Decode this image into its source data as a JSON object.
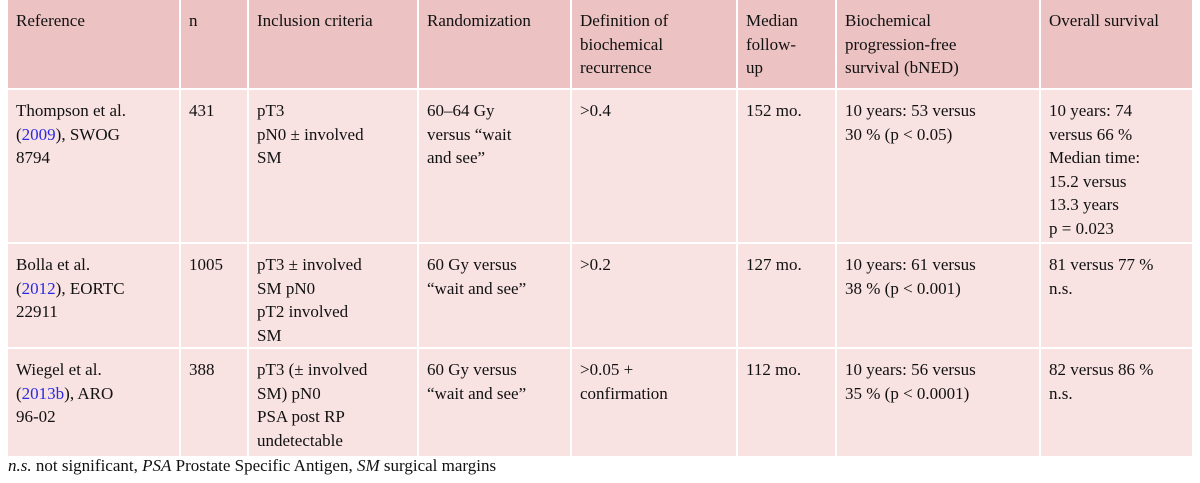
{
  "table": {
    "header": [
      [
        "Reference"
      ],
      [
        "n"
      ],
      [
        "Inclusion criteria"
      ],
      [
        "Randomization"
      ],
      [
        "Definition of",
        "biochemical",
        "recurrence"
      ],
      [
        "Median",
        "follow-",
        "up"
      ],
      [
        "Biochemical",
        "progression-free",
        "survival (bNED)"
      ],
      [
        "Overall survival"
      ]
    ],
    "rows": [
      [
        [
          "Thompson et al.",
          [
            "(",
            "2009",
            "), SWOG"
          ],
          "8794"
        ],
        [
          "431"
        ],
        [
          "pT3",
          "pN0 ± involved",
          "SM"
        ],
        [
          "60–64 Gy",
          "versus “wait",
          "and see”"
        ],
        [
          ">0.4"
        ],
        [
          "152 mo."
        ],
        [
          "10 years: 53 versus",
          "30 % (p < 0.05)"
        ],
        [
          "10 years: 74",
          "versus 66 %",
          "Median time:",
          "15.2 versus",
          "13.3 years",
          "p = 0.023"
        ]
      ],
      [
        [
          "Bolla et al.",
          [
            "(",
            "2012",
            "), EORTC"
          ],
          "22911"
        ],
        [
          "1005"
        ],
        [
          "pT3 ± involved",
          "SM pN0",
          "pT2 involved",
          "SM"
        ],
        [
          "60 Gy versus",
          "“wait and see”"
        ],
        [
          ">0.2"
        ],
        [
          "127 mo."
        ],
        [
          "10 years: 61 versus",
          "38 % (p < 0.001)"
        ],
        [
          "81 versus 77 %",
          "n.s."
        ]
      ],
      [
        [
          "Wiegel et al.",
          [
            "(",
            "2013b",
            "), ARO"
          ],
          "96-02"
        ],
        [
          "388"
        ],
        [
          "pT3 (± involved",
          "SM) pN0",
          "PSA post RP",
          "undetectable"
        ],
        [
          "60 Gy versus",
          "“wait and see”"
        ],
        [
          ">0.05 +",
          "confirmation"
        ],
        [
          "112 mo."
        ],
        [
          "10 years: 56 versus",
          "35 % (p < 0.0001)"
        ],
        [
          "82 versus 86 %",
          "n.s."
        ]
      ]
    ]
  },
  "footnote": [
    {
      "text": "n.s.",
      "italic": true
    },
    {
      "text": " not significant, ",
      "italic": false
    },
    {
      "text": "PSA",
      "italic": true
    },
    {
      "text": " Prostate Specific Antigen, ",
      "italic": false
    },
    {
      "text": "SM",
      "italic": true
    },
    {
      "text": " surgical margins",
      "italic": false
    }
  ]
}
